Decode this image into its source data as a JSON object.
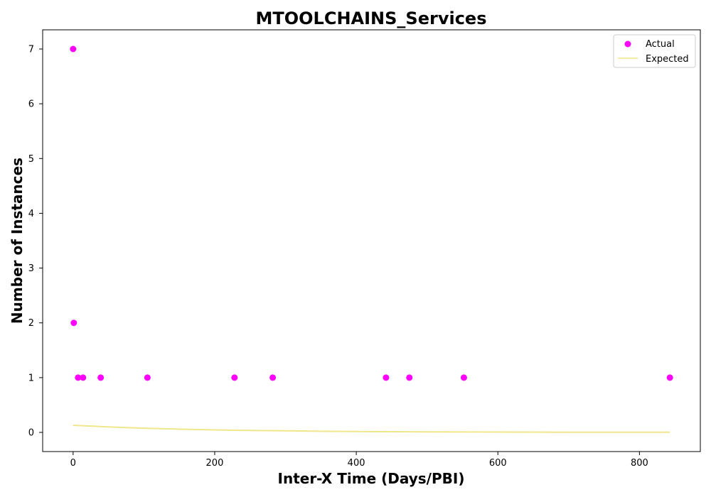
{
  "chart_data": {
    "type": "scatter",
    "title": "MTOOLCHAINS_Services",
    "xlabel": "Inter-X Time (Days/PBI)",
    "ylabel": "Number of Instances",
    "xlim": [
      -43,
      886
    ],
    "ylim": [
      -0.35,
      7.35
    ],
    "xticks": [
      0,
      200,
      400,
      600,
      800
    ],
    "yticks": [
      0,
      1,
      2,
      3,
      4,
      5,
      6,
      7
    ],
    "grid": false,
    "legend_position": "top-right",
    "series": [
      {
        "name": "Actual",
        "kind": "scatter",
        "color": "#ff00ff",
        "x": [
          0,
          1,
          7,
          14,
          39,
          105,
          228,
          282,
          442,
          475,
          552,
          843
        ],
        "y": [
          7,
          2,
          1,
          1,
          1,
          1,
          1,
          1,
          1,
          1,
          1,
          1
        ]
      },
      {
        "name": "Expected",
        "kind": "line",
        "color": "#f0e68c",
        "x": [
          0,
          25,
          50,
          75,
          100,
          150,
          200,
          250,
          300,
          350,
          400,
          450,
          500,
          550,
          600,
          650,
          700,
          750,
          800,
          843
        ],
        "y": [
          0.13,
          0.115,
          0.1,
          0.088,
          0.077,
          0.06,
          0.046,
          0.036,
          0.028,
          0.021,
          0.016,
          0.013,
          0.01,
          0.008,
          0.006,
          0.005,
          0.004,
          0.003,
          0.002,
          0.002
        ]
      }
    ]
  }
}
